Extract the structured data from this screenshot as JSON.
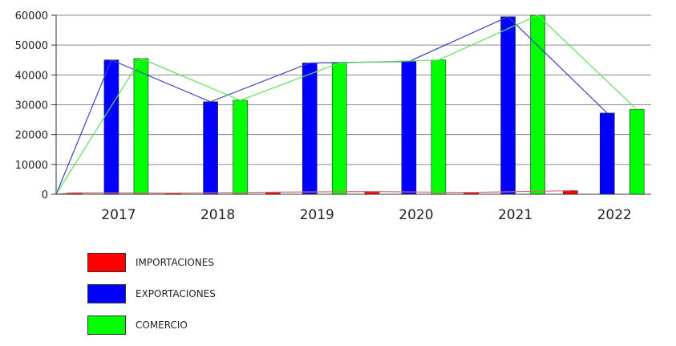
{
  "chart_data": {
    "type": "bar",
    "categories": [
      "2017",
      "2018",
      "2019",
      "2020",
      "2021",
      "2022"
    ],
    "series": [
      {
        "name": "IMPORTACIONES",
        "color": "#ff0000",
        "values": [
          500,
          400,
          700,
          900,
          600,
          1200
        ]
      },
      {
        "name": "EXPORTACIONES",
        "color": "#0000ff",
        "values": [
          45000,
          31000,
          44000,
          44500,
          59500,
          27200
        ]
      },
      {
        "name": "COMERCIO",
        "color": "#00ff00",
        "values": [
          45500,
          31500,
          44000,
          45000,
          60000,
          28400
        ]
      }
    ],
    "overlay_lines": true,
    "ylim": [
      0,
      60000
    ],
    "yticks": [
      "0",
      "10000",
      "20000",
      "30000",
      "40000",
      "50000",
      "60000"
    ],
    "grid": true,
    "legend_position": "bottom-left"
  }
}
